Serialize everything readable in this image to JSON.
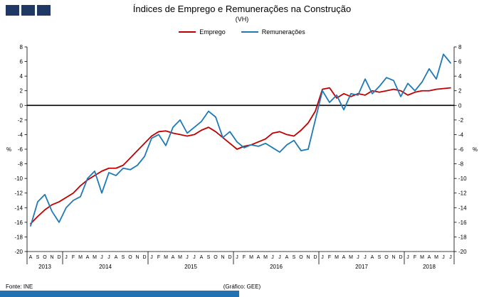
{
  "header": {
    "title": "Índices de Emprego  e Remunerações na Construção",
    "subtitle": "(VH)"
  },
  "legend": {
    "items": [
      {
        "label": "Emprego",
        "color": "#C00000"
      },
      {
        "label": "Remunerações",
        "color": "#1F79B4"
      }
    ]
  },
  "footer": {
    "source": "Fonte: INE",
    "credit": "(Gráfico:  GEE)"
  },
  "colors": {
    "logo_square": "#1F3864",
    "bottom_bar": "#2271B3",
    "emprego_line": "#C00000",
    "remuneracoes_line": "#1F79B4",
    "axis": "#000000"
  },
  "chart_data": {
    "type": "line",
    "title": "Índices de Emprego e Remunerações na Construção (VH)",
    "xlabel": "",
    "ylabel": "%",
    "ylim": [
      -20,
      8
    ],
    "ytick_step": 2,
    "grid": false,
    "legend_position": "top",
    "groups": [
      {
        "year": "2013",
        "months": [
          "A",
          "S",
          "O",
          "N",
          "D"
        ]
      },
      {
        "year": "2014",
        "months": [
          "J",
          "F",
          "M",
          "A",
          "M",
          "J",
          "J",
          "A",
          "S",
          "O",
          "N",
          "D"
        ]
      },
      {
        "year": "2015",
        "months": [
          "J",
          "F",
          "M",
          "A",
          "M",
          "J",
          "J",
          "A",
          "S",
          "O",
          "N",
          "D"
        ]
      },
      {
        "year": "2016",
        "months": [
          "J",
          "F",
          "M",
          "A",
          "M",
          "J",
          "J",
          "A",
          "S",
          "O",
          "N",
          "D"
        ]
      },
      {
        "year": "2017",
        "months": [
          "J",
          "F",
          "M",
          "A",
          "M",
          "J",
          "J",
          "A",
          "S",
          "O",
          "N",
          "D"
        ]
      },
      {
        "year": "2018",
        "months": [
          "J",
          "F",
          "M",
          "A",
          "M",
          "J",
          "J"
        ]
      }
    ],
    "series": [
      {
        "name": "Emprego",
        "color": "#C00000",
        "values": [
          -16.2,
          -15.2,
          -14.3,
          -13.6,
          -13.2,
          -12.6,
          -12.0,
          -11.0,
          -10.2,
          -9.6,
          -9.0,
          -8.6,
          -8.6,
          -8.2,
          -7.2,
          -6.2,
          -5.2,
          -4.2,
          -3.6,
          -3.5,
          -3.8,
          -4.0,
          -4.2,
          -4.0,
          -3.4,
          -3.0,
          -3.6,
          -4.4,
          -5.2,
          -6.0,
          -5.6,
          -5.4,
          -5.0,
          -4.6,
          -3.8,
          -3.6,
          -4.0,
          -4.2,
          -3.4,
          -2.4,
          -0.8,
          2.2,
          2.4,
          1.0,
          1.6,
          1.2,
          1.6,
          1.4,
          2.0,
          1.8,
          2.0,
          2.2,
          2.0,
          1.4,
          1.8,
          2.0,
          2.0,
          2.2,
          2.3,
          2.4
        ]
      },
      {
        "name": "Remunerações",
        "color": "#1F79B4",
        "values": [
          -16.5,
          -13.2,
          -12.2,
          -14.5,
          -16.0,
          -14.0,
          -13.0,
          -12.5,
          -10.0,
          -9.0,
          -12.0,
          -9.2,
          -9.6,
          -8.6,
          -8.8,
          -8.2,
          -7.0,
          -4.5,
          -4.0,
          -5.5,
          -3.0,
          -2.0,
          -3.8,
          -3.0,
          -2.2,
          -0.8,
          -1.6,
          -4.4,
          -3.6,
          -5.0,
          -5.8,
          -5.4,
          -5.6,
          -5.2,
          -5.8,
          -6.4,
          -5.4,
          -4.8,
          -6.2,
          -6.0,
          -2.0,
          2.0,
          0.4,
          1.4,
          -0.6,
          1.6,
          1.4,
          3.6,
          1.6,
          2.6,
          3.8,
          3.4,
          1.2,
          3.0,
          2.0,
          3.2,
          5.0,
          3.6,
          7.0,
          5.8
        ]
      }
    ]
  }
}
